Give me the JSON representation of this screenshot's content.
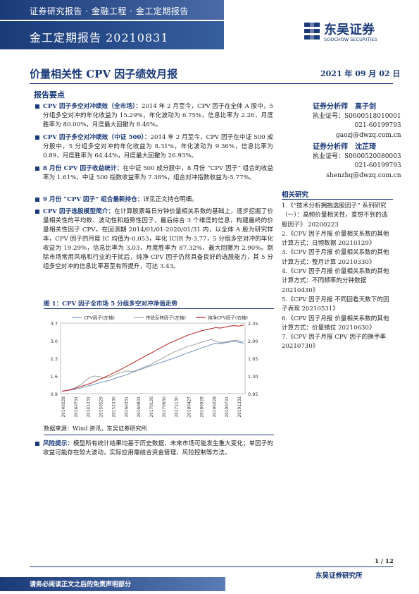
{
  "header": {
    "series": "证券研究报告 · 金融工程 · 金工定期报告",
    "title": "金工定期报告 20210831",
    "logo_cn": "东吴证券",
    "logo_en": "SOOCHOW SECURITIES"
  },
  "doc": {
    "title": "价量相关性 CPV 因子绩效月报",
    "date": "2021 年 09 月 02 日",
    "summary_heading": "报告要点"
  },
  "bullets": [
    {
      "bold": "CPV 因子多空对冲绩效（全市场）：",
      "text": "2014 年 2 月至今，CPV 因子在全体 A 股中，5 分组多空对冲的年化收益为 15.29%，年化波动为 6.75%，信息比率为 2.26，月度胜率为 80.00%，月度最大回撤为 8.46%。"
    },
    {
      "bold": "CPV 因子多空对冲绩效（中证 500）：",
      "text": "2014 年 2 月至今，CPV 因子在中证 500 成分股中，5 分组多空对冲的年化收益为 8.31%，年化波动为 9.36%，信息比率为 0.89，月度胜率为 64.44%，月度最大回撤为 26.93%。"
    },
    {
      "bold": "8 月份 CPV 因子收益统计：",
      "text": "在中证 500 成分股中，8 月份 “CPV 因子” 组合的收益率为 1.61%，中证 500 指数收益率为 7.38%，组合对冲指数收益为-5.77%。"
    },
    {
      "bold": "9 月份 “CPV 因子” 组合最新持仓：",
      "text": "详见正文持仓明细。"
    },
    {
      "bold": "CPV 因子选股模型简介：",
      "text": "在计算股票每日分钟价量相关系数的基础上，逐步挖掘了价量相关性的平均数、波动性和趋势性因子，最后综合 3 个维度的信息，构建最终的价量相关性因子 CPV。在回测期 2014/01/01-2020/01/31 内，以全体 A 股为研究样本，CPV 因子的月度 IC 均值为-0.053，年化 ICIR 为-3.77，5 分组多空对冲的年化收益为 19.29%，信息比率为 3.03，月度胜率为 87.32%，最大回撤为 2.90%。剔除市场常用风格和行业的干扰后，纯净 CPV 因子仍然具备良好的选股能力，其 5 分组多空对冲的信息比率甚至有所提升，可达 3.43。"
    }
  ],
  "analysts": [
    {
      "heading": "证券分析师　高子剑",
      "lines": [
        "执业证号：S0600518010001",
        "021-60199793",
        "gaozj@dwzq.com.cn"
      ]
    },
    {
      "heading": "证券分析师　沈芷琦",
      "lines": [
        "执业证号：S0600520080003",
        "021-60199793",
        "shenzhq@dwzq.com.cn"
      ]
    }
  ],
  "related": {
    "heading": "相关研究",
    "items": [
      "1.《“技术分析拥抱选股因子” 系列研究（一）：高频价量相关性，意想不到的选股因子》 20200223",
      "2.《CPV 因子月报 价量相关系数的其他计算方式：日频数据 20210129》",
      "3.《CPV 因子月报 价量相关系数的其他计算方式：整月计算 20210330》",
      "4.《CPV 因子月报 价量相关系数的其他计算方式：不同频率的分钟数据 20210430》",
      "5.《CPV 因子月报 不同回看天数下的因子表现 20210531》",
      "6.《CPV 因子月报 价量相关系数的其他计算方式：价量错位 20210630》",
      "7.《CPV 因子月报 CPV 因子的换手率 20210730》"
    ]
  },
  "figure": {
    "title": "图 1：CPV 因子全市场 5 分组多空对冲净值走势",
    "source": "数据来源：Wind 资讯，东吴证券研究所"
  },
  "chart_data": {
    "type": "line",
    "legend": [
      "CPV因子(左轴)",
      "传统反转因子(左轴)",
      "纯净CPV因子(右轴)"
    ],
    "legend_position": "top",
    "x_ticks": [
      "20140228",
      "20140731",
      "20141231",
      "20150529",
      "20151030",
      "20160331",
      "20160831",
      "20170126",
      "20170630",
      "20171130",
      "20180427",
      "20180928",
      "20190228",
      "20190731",
      "20191231"
    ],
    "left_axis": {
      "ticks": [
        "0.9",
        "1.6",
        "2.3",
        "3.0",
        "3.7"
      ],
      "range": [
        0.9,
        3.7
      ]
    },
    "right_axis": {
      "ticks": [
        "0.95",
        "1.30",
        "1.65",
        "2.00",
        "2.35"
      ],
      "range": [
        0.95,
        2.35
      ]
    },
    "series": [
      {
        "name": "CPV因子(左轴)",
        "axis": "left",
        "color": "#7a9cc6",
        "values": [
          1.0,
          1.02,
          1.05,
          1.08,
          1.12,
          1.18,
          1.22,
          1.27,
          1.33,
          1.38,
          1.42,
          1.48,
          1.55,
          1.6,
          1.66,
          1.74,
          1.8,
          1.87,
          1.94,
          2.0,
          2.06,
          2.12,
          2.18,
          2.25,
          2.31,
          2.38,
          2.45,
          2.52,
          2.58,
          2.65,
          2.72,
          2.78,
          2.85,
          2.9,
          2.88,
          2.92,
          2.95,
          2.98,
          2.94,
          2.9
        ]
      },
      {
        "name": "传统反转因子(左轴)",
        "axis": "left",
        "color": "#a8a8a8",
        "values": [
          1.0,
          1.03,
          1.08,
          1.15,
          1.25,
          1.4,
          1.55,
          1.6,
          1.58,
          1.52,
          1.55,
          1.62,
          1.7,
          1.75,
          1.8,
          1.78,
          1.82,
          1.9,
          1.98,
          2.05,
          2.15,
          2.25,
          2.35,
          2.45,
          2.55,
          2.62,
          2.7,
          2.78,
          2.82,
          2.88,
          2.95,
          3.0,
          3.05,
          2.98,
          2.92,
          2.95,
          2.98,
          3.02,
          3.0,
          2.95
        ]
      },
      {
        "name": "纯净CPV因子(右轴)",
        "axis": "right",
        "color": "#c0302c",
        "values": [
          1.0,
          1.01,
          1.03,
          1.06,
          1.09,
          1.12,
          1.15,
          1.19,
          1.23,
          1.27,
          1.31,
          1.36,
          1.4,
          1.45,
          1.5,
          1.55,
          1.6,
          1.65,
          1.7,
          1.75,
          1.8,
          1.85,
          1.9,
          1.95,
          1.99,
          2.03,
          2.07,
          2.11,
          2.14,
          2.17,
          2.2,
          2.22,
          2.24,
          2.26,
          2.25,
          2.27,
          2.29,
          2.3,
          2.29,
          2.31
        ]
      }
    ]
  },
  "risk": {
    "bold": "风险提示：",
    "text": "模型所有统计结果均基于历史数据，未来市场可能发生重大变化；单因子的收益可能存在较大波动，实际应用需结合资金管理、风险控制等方法。"
  },
  "footer": {
    "page": "1 / 12",
    "institute": "东吴证券研究所",
    "disclaimer": "请务必阅读正文之后的免责声明部分"
  },
  "colors": {
    "brand": "#1b3a78",
    "accent_red": "#c0302c"
  }
}
